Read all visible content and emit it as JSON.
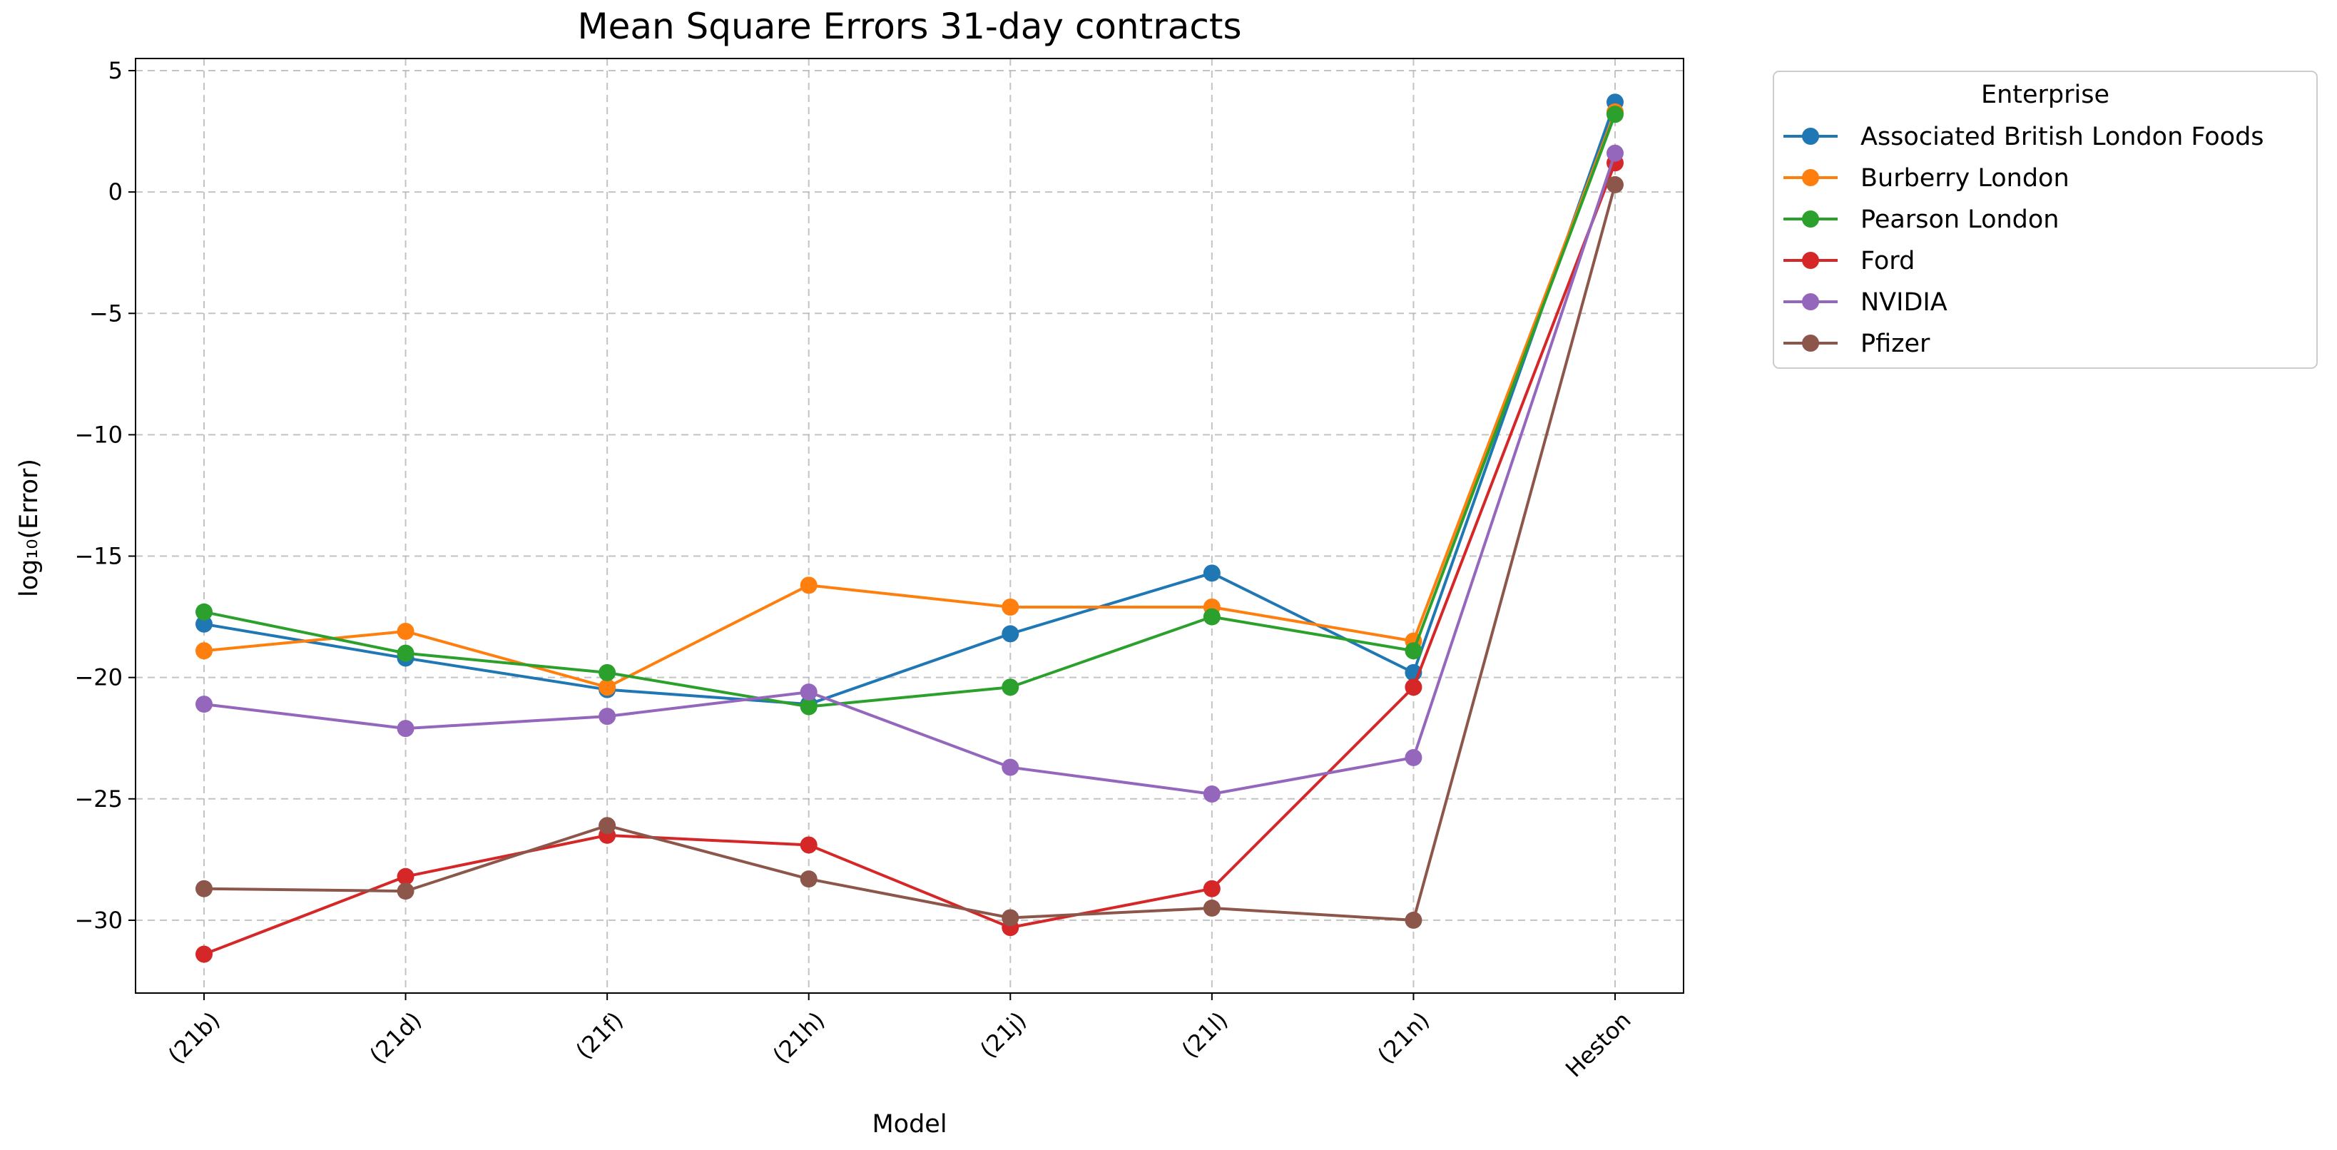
{
  "chart_data": {
    "type": "line",
    "title": "Mean Square Errors 31-day contracts",
    "xlabel": "Model",
    "ylabel": "log₁₀(Error)",
    "categories": [
      "(21b)",
      "(21d)",
      "(21f)",
      "(21h)",
      "(21j)",
      "(21l)",
      "(21n)",
      "Heston"
    ],
    "ylim": [
      -33,
      5.5
    ],
    "yticks": [
      5,
      0,
      -5,
      -10,
      -15,
      -20,
      -25,
      -30
    ],
    "ytick_labels": [
      "5",
      "0",
      "−5",
      "−10",
      "−15",
      "−20",
      "−25",
      "−30"
    ],
    "grid": true,
    "grid_style": "dashed",
    "marker": "circle",
    "legend": {
      "title": "Enterprise",
      "placement": "outside-upper-right"
    },
    "series": [
      {
        "name": "Associated British London Foods",
        "color": "#1f77b4",
        "values": [
          -17.8,
          -19.2,
          -20.5,
          -21.1,
          -18.2,
          -15.7,
          -19.8,
          3.7
        ]
      },
      {
        "name": "Burberry London",
        "color": "#ff7f0e",
        "values": [
          -18.9,
          -18.1,
          -20.4,
          -16.2,
          -17.1,
          -17.1,
          -18.5,
          3.3
        ]
      },
      {
        "name": "Pearson London",
        "color": "#2ca02c",
        "values": [
          -17.3,
          -19.0,
          -19.8,
          -21.2,
          -20.4,
          -17.5,
          -18.9,
          3.2
        ]
      },
      {
        "name": "Ford",
        "color": "#d62728",
        "values": [
          -31.4,
          -28.2,
          -26.5,
          -26.9,
          -30.3,
          -28.7,
          -20.4,
          1.2
        ]
      },
      {
        "name": "NVIDIA",
        "color": "#9467bd",
        "values": [
          -21.1,
          -22.1,
          -21.6,
          -20.6,
          -23.7,
          -24.8,
          -23.3,
          1.6
        ]
      },
      {
        "name": "Pfizer",
        "color": "#8c564b",
        "values": [
          -28.7,
          -28.8,
          -26.1,
          -28.3,
          -29.9,
          -29.5,
          -30.0,
          0.3
        ]
      }
    ]
  }
}
